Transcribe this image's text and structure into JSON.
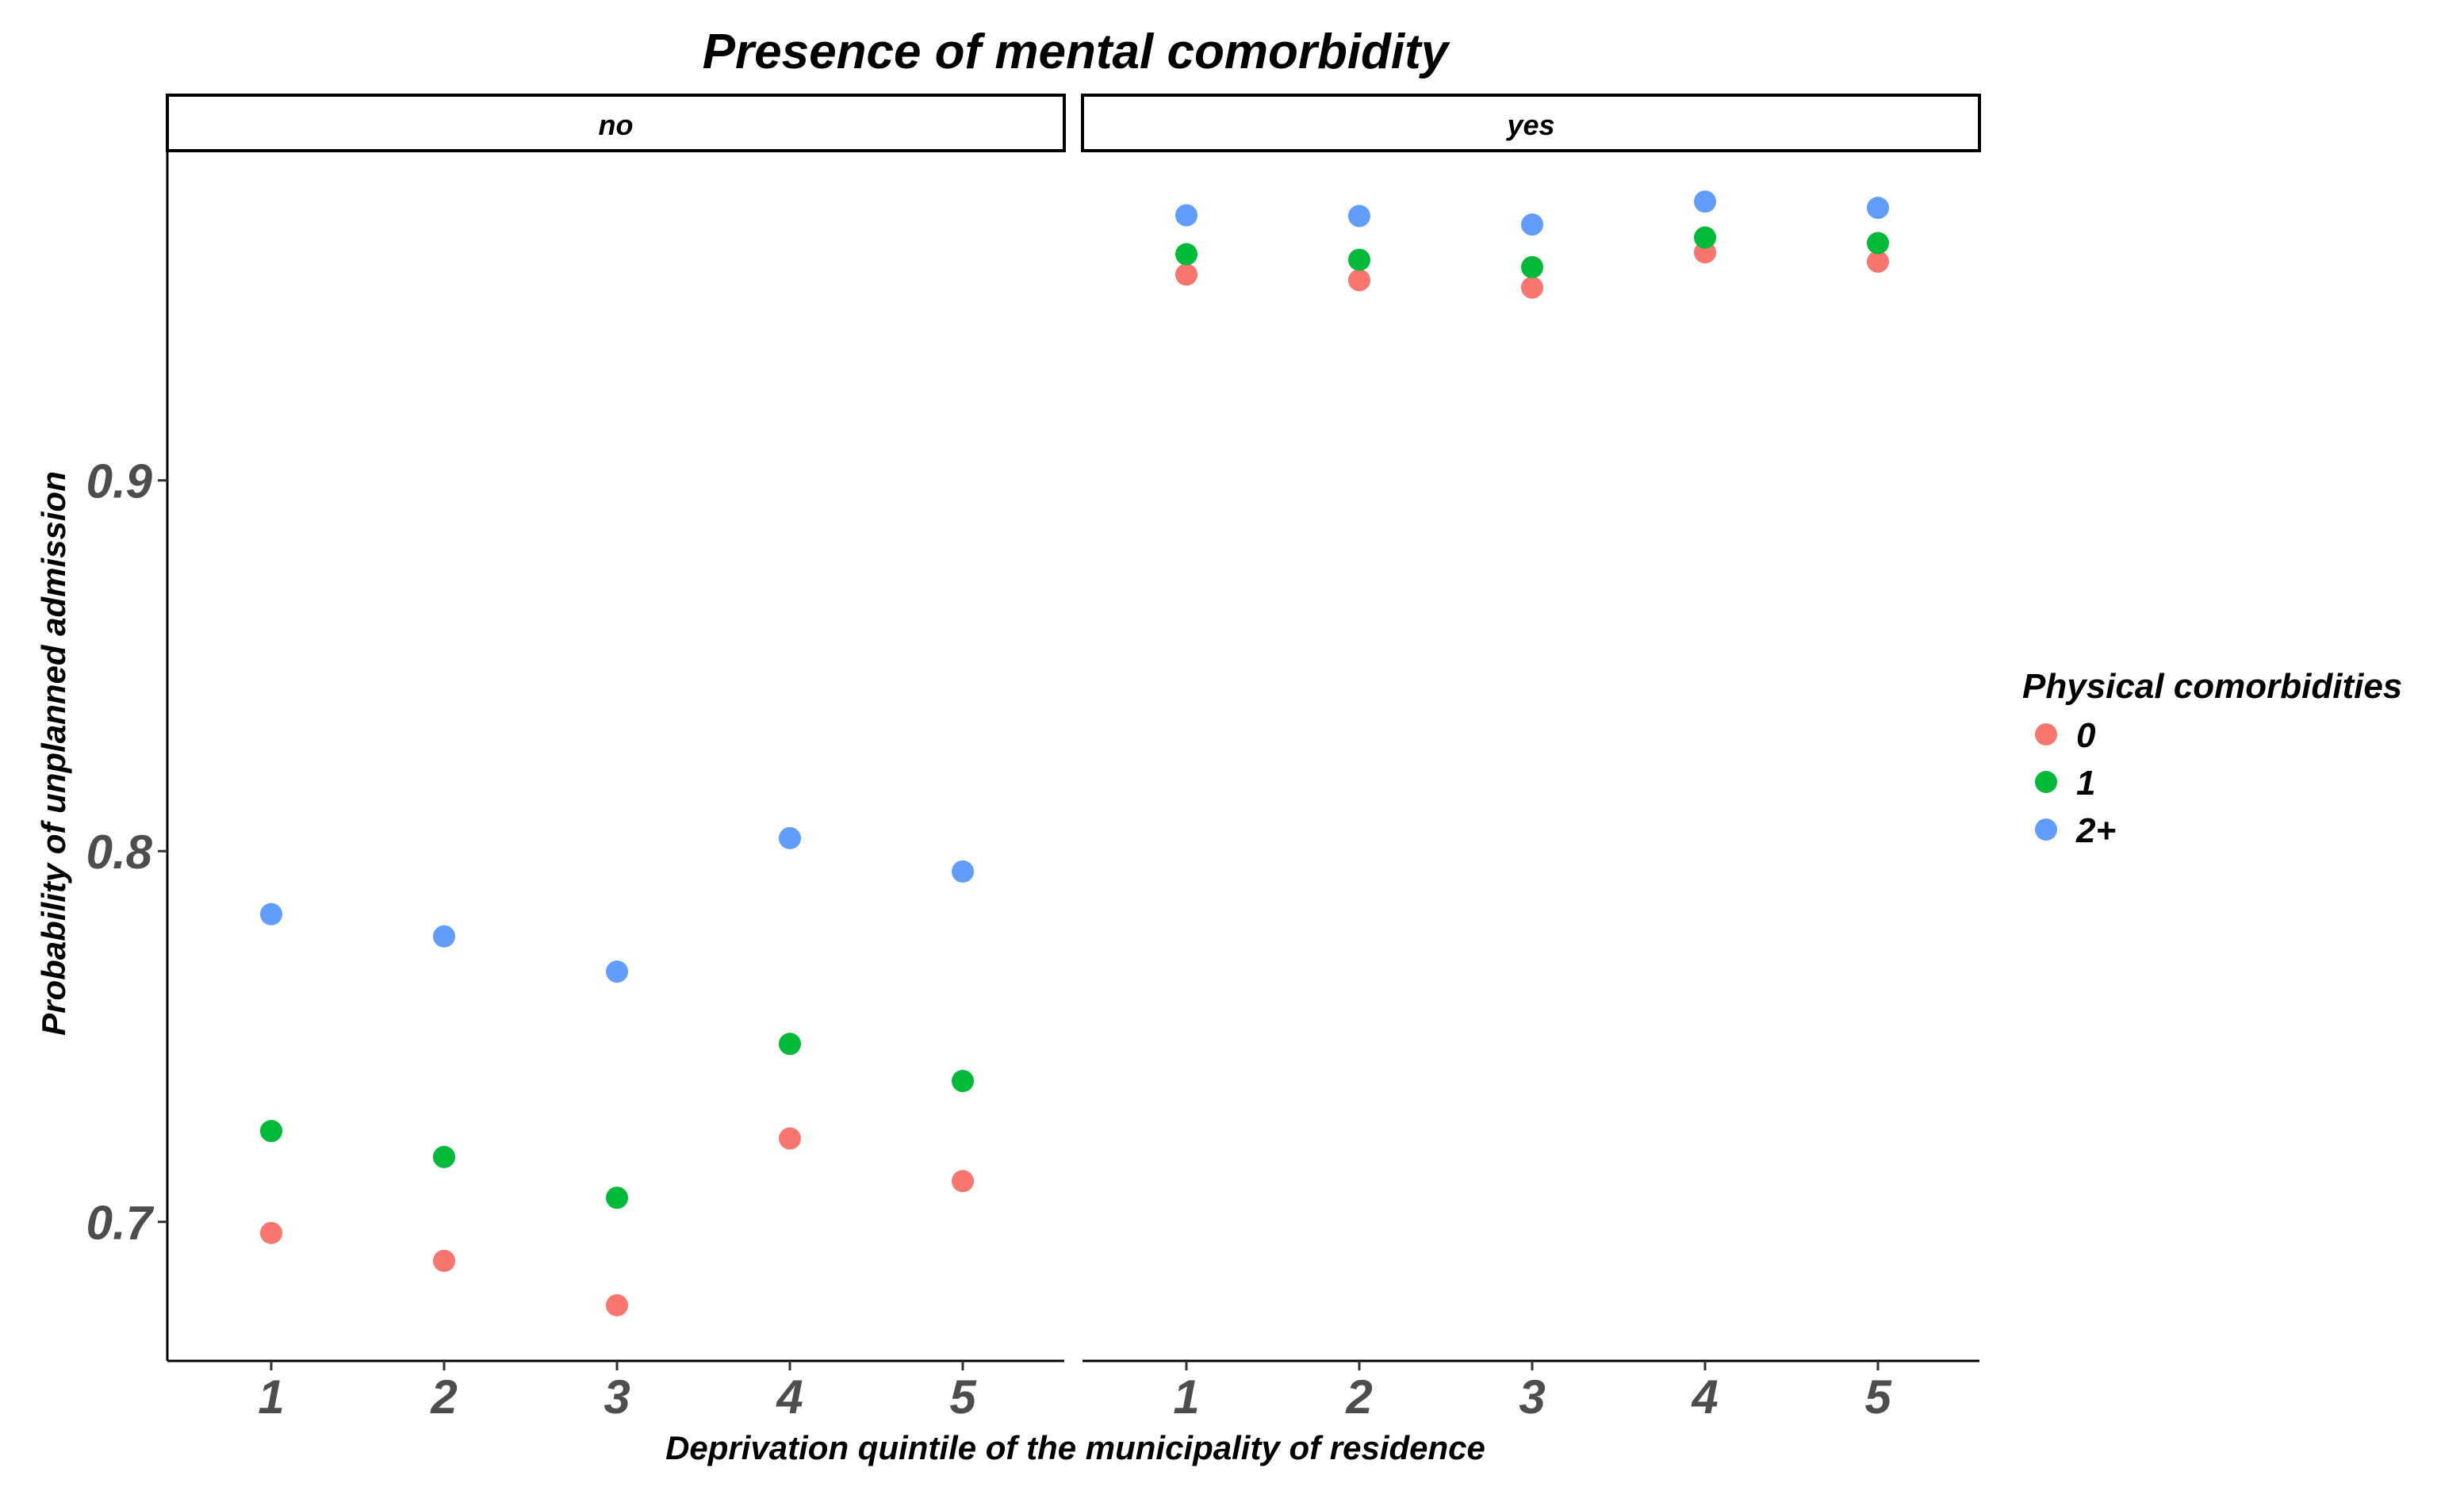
{
  "chart_data": {
    "type": "scatter",
    "title": "Presence of mental comorbidity",
    "xlabel": "Deprivation quintile of the municipality of residence",
    "ylabel": "Probability of unplanned admission",
    "categories": [
      "1",
      "2",
      "3",
      "4",
      "5"
    ],
    "yticks": [
      0.7,
      0.8,
      0.9
    ],
    "ytick_labels": [
      "0.7",
      "0.8",
      "0.9"
    ],
    "ylim": [
      0.6625,
      0.9885
    ],
    "legend": {
      "title": "Physical comorbidities",
      "position": "right"
    },
    "series_colors": {
      "0": "#F8766D",
      "1": "#00BA38",
      "2+": "#619CFF"
    },
    "panels": [
      {
        "label": "no",
        "series": [
          {
            "name": "0",
            "values": [
              0.697,
              0.6895,
              0.6775,
              0.7225,
              0.711
            ]
          },
          {
            "name": "1",
            "values": [
              0.7245,
              0.7175,
              0.7065,
              0.748,
              0.738
            ]
          },
          {
            "name": "2+",
            "values": [
              0.783,
              0.777,
              0.7675,
              0.8035,
              0.7945
            ]
          }
        ]
      },
      {
        "label": "yes",
        "series": [
          {
            "name": "0",
            "values": [
              0.9555,
              0.954,
              0.952,
              0.9615,
              0.959
            ]
          },
          {
            "name": "1",
            "values": [
              0.961,
              0.9595,
              0.9575,
              0.9655,
              0.964
            ]
          },
          {
            "name": "2+",
            "values": [
              0.9715,
              0.9713,
              0.969,
              0.9752,
              0.9735
            ]
          }
        ]
      }
    ]
  }
}
